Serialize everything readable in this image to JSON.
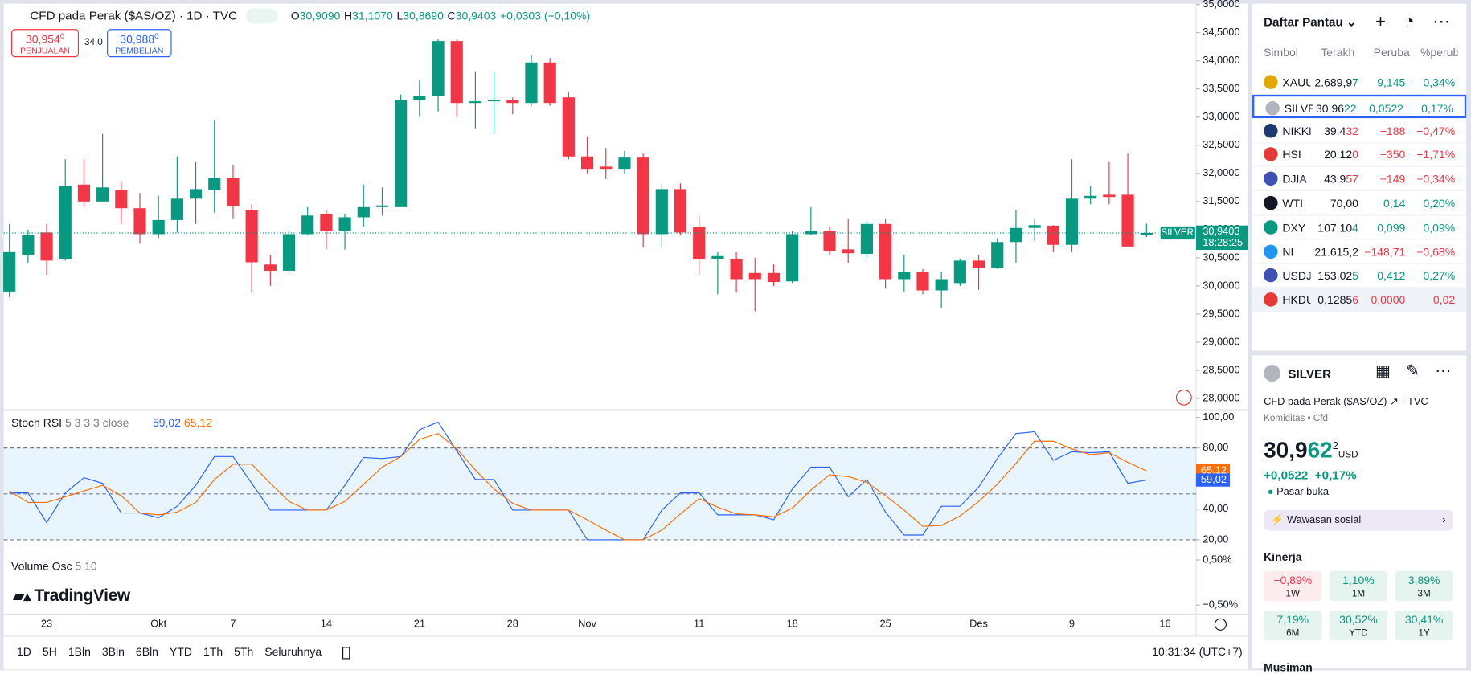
{
  "header": {
    "title": "CFD pada Perak ($AS/OZ) · 1D · TVC",
    "ohlc": [
      {
        "label": "O",
        "value": "30,9090"
      },
      {
        "label": "H",
        "value": "31,1070"
      },
      {
        "label": "L",
        "value": "30,8690"
      },
      {
        "label": "C",
        "value": "30,9403"
      }
    ],
    "change": "+0,0303 (+0,10%)",
    "sell": {
      "price": "30,954",
      "sup": "0",
      "label": "PENJUALAN"
    },
    "spread": "34,0",
    "buy": {
      "price": "30,988",
      "sup": "0",
      "label": "PEMBELIAN"
    }
  },
  "price_chart": {
    "type": "candlestick",
    "up_color": "#089981",
    "down_color": "#f23645",
    "ylim": [
      27.8,
      35.08
    ],
    "yticks": [
      {
        "value": 35,
        "label": "35,0000"
      },
      {
        "value": 34.5,
        "label": "34,5000"
      },
      {
        "value": 34,
        "label": "34,0000"
      },
      {
        "value": 33.5,
        "label": "33,5000"
      },
      {
        "value": 33,
        "label": "33,0000"
      },
      {
        "value": 32.5,
        "label": "32,5000"
      },
      {
        "value": 32,
        "label": "32,0000"
      },
      {
        "value": 31.5,
        "label": "31,5000"
      },
      {
        "value": 31,
        "label": "31,0000"
      },
      {
        "value": 30.5,
        "label": "30,5000"
      },
      {
        "value": 30,
        "label": "30,0000"
      },
      {
        "value": 29.5,
        "label": "29,5000"
      },
      {
        "value": 29,
        "label": "29,0000"
      },
      {
        "value": 28.5,
        "label": "28,5000"
      },
      {
        "value": 28,
        "label": "28,0000"
      }
    ],
    "open": [
      29.9,
      30.55,
      30.95,
      30.47,
      31.8,
      31.5,
      31.7,
      31.38,
      30.92,
      31.17,
      31.55,
      31.7,
      31.92,
      31.35,
      30.38,
      30.27,
      30.92,
      31.28,
      30.97,
      31.22,
      31.4,
      31.4,
      33.3,
      33.37,
      34.35,
      33.25,
      33.28,
      33.3,
      33.25,
      33.97,
      33.35,
      32.3,
      32.12,
      32.08,
      32.28,
      30.92,
      31.72,
      31.05,
      30.47,
      30.47,
      30.23,
      30.23,
      30.08,
      30.92,
      30.97,
      30.65,
      30.57,
      31.1,
      30.12,
      30.25,
      29.92,
      30.05,
      30.45,
      30.32,
      30.78,
      31.03,
      31.07,
      30.73,
      31.55,
      31.62,
      31.62,
      30.909
    ],
    "high": [
      31.1,
      31.0,
      31.1,
      32.25,
      32.25,
      32.7,
      31.85,
      31.65,
      31.6,
      32.3,
      32.2,
      32.95,
      32.15,
      31.45,
      30.55,
      31.0,
      31.4,
      31.35,
      31.28,
      31.8,
      31.75,
      33.4,
      33.65,
      34.38,
      34.38,
      33.8,
      33.8,
      33.35,
      34.1,
      34.05,
      33.45,
      32.65,
      32.45,
      32.4,
      32.35,
      31.82,
      31.82,
      31.25,
      30.6,
      30.6,
      30.5,
      30.38,
      30.97,
      31.4,
      31.05,
      31.2,
      31.15,
      31.2,
      30.55,
      30.3,
      30.25,
      30.48,
      30.55,
      30.85,
      31.35,
      31.2,
      31.08,
      32.25,
      31.78,
      32.2,
      32.35,
      31.107
    ],
    "low": [
      29.8,
      30.4,
      30.2,
      30.45,
      31.4,
      31.5,
      31.1,
      30.75,
      30.85,
      30.95,
      31.1,
      31.3,
      31.2,
      29.9,
      30.0,
      30.2,
      30.9,
      30.65,
      30.65,
      31.05,
      31.25,
      31.4,
      33.0,
      33.1,
      33.0,
      32.8,
      32.7,
      33.05,
      33.2,
      33.2,
      32.25,
      32.0,
      31.9,
      32.0,
      30.68,
      30.7,
      30.9,
      30.2,
      29.85,
      29.88,
      29.55,
      30.0,
      30.05,
      30.9,
      30.55,
      30.4,
      30.5,
      29.95,
      29.9,
      29.85,
      29.6,
      30.0,
      29.93,
      30.3,
      30.4,
      30.8,
      30.6,
      30.6,
      31.45,
      31.45,
      30.7,
      30.869
    ],
    "close": [
      30.6,
      30.9,
      30.45,
      31.78,
      31.5,
      31.75,
      31.38,
      30.92,
      31.17,
      31.55,
      31.72,
      31.92,
      31.42,
      30.42,
      30.27,
      30.92,
      31.25,
      30.98,
      31.22,
      31.4,
      31.43,
      33.3,
      33.37,
      34.35,
      33.25,
      33.28,
      33.3,
      33.25,
      33.97,
      33.25,
      32.3,
      32.08,
      32.08,
      32.28,
      30.92,
      31.72,
      30.95,
      30.47,
      30.53,
      30.12,
      30.12,
      30.07,
      30.92,
      30.97,
      30.62,
      30.58,
      31.1,
      30.12,
      30.25,
      29.92,
      30.12,
      30.45,
      30.32,
      30.78,
      31.03,
      31.08,
      30.73,
      31.55,
      31.6,
      31.58,
      30.7,
      30.9403
    ],
    "last_price": {
      "value": 30.9403,
      "label": "30,9403",
      "countdown": "18:28:25",
      "name": "SILVER"
    }
  },
  "stoch_rsi": {
    "type": "line",
    "title": "Stoch RSI",
    "params": "5 3 3 3 close",
    "ylim": [
      11.25,
      105
    ],
    "yticks": [
      {
        "value": 100,
        "label": "100,00"
      },
      {
        "value": 80,
        "label": "80,00"
      },
      {
        "value": 40,
        "label": "40,00"
      },
      {
        "value": 20,
        "label": "20,00"
      }
    ],
    "band": [
      20,
      80
    ],
    "band_lines": [
      80,
      50,
      20
    ],
    "series": [
      {
        "name": "K",
        "label": "59,02",
        "color": "#2962ff",
        "values": [
          50.6,
          50.6,
          31.3,
          50.6,
          60.6,
          56.9,
          37.5,
          37.5,
          34.4,
          41.9,
          55.6,
          74.4,
          74.4,
          56.9,
          39.4,
          39.4,
          39.4,
          39.4,
          55.6,
          73.8,
          73.1,
          74.4,
          91.9,
          96.9,
          78.1,
          59.4,
          59.4,
          39.4,
          39.4,
          39.4,
          39.4,
          20,
          20,
          20,
          20,
          39.4,
          50.6,
          50.6,
          36.3,
          36.3,
          36.3,
          33.1,
          53.1,
          67.5,
          67.5,
          48.1,
          59.4,
          38.1,
          23.1,
          23.1,
          41.9,
          41.9,
          54.4,
          73.1,
          89.4,
          90.6,
          71.9,
          77.5,
          76.9,
          77.5,
          56.9,
          59.02
        ]
      },
      {
        "name": "D",
        "label": "65,12",
        "color": "#ff6d00",
        "values": [
          51.9,
          44.4,
          44.4,
          48.1,
          51.9,
          55.6,
          48.8,
          37.5,
          36.3,
          38.1,
          44.4,
          59.4,
          69.4,
          69.4,
          56.9,
          45,
          39.4,
          39.4,
          45,
          56.3,
          67.5,
          74.4,
          85.6,
          89.4,
          79.4,
          65.6,
          53.1,
          43.8,
          39.4,
          39.4,
          39.4,
          33.1,
          26.3,
          20,
          20,
          26.3,
          36.9,
          46.9,
          41.3,
          36.9,
          36.3,
          35,
          40.6,
          52.5,
          62.5,
          61.3,
          57.5,
          48.8,
          39.4,
          28.8,
          29.4,
          35.6,
          45,
          56.3,
          70,
          84.4,
          84.4,
          79.4,
          75.6,
          76.9,
          70.6,
          65.12
        ]
      }
    ]
  },
  "volume_osc": {
    "title": "Volume Osc",
    "params": "5 10",
    "ylim": [
      -0.7,
      0.65
    ],
    "yticks": [
      {
        "value": 0.5,
        "label": "0,50%"
      },
      {
        "value": -0.5,
        "label": "−0,50%"
      }
    ]
  },
  "logo": "TradingView",
  "time_axis": [
    {
      "label": "23",
      "index": 2
    },
    {
      "label": "Okt",
      "index": 8
    },
    {
      "label": "7",
      "index": 12
    },
    {
      "label": "14",
      "index": 17
    },
    {
      "label": "21",
      "index": 22
    },
    {
      "label": "28",
      "index": 27
    },
    {
      "label": "Nov",
      "index": 31
    },
    {
      "label": "11",
      "index": 37
    },
    {
      "label": "18",
      "index": 42
    },
    {
      "label": "25",
      "index": 47
    },
    {
      "label": "Des",
      "index": 52
    },
    {
      "label": "9",
      "index": 57
    },
    {
      "label": "16",
      "index": 62
    }
  ],
  "toolbar": {
    "ranges": [
      "1D",
      "5H",
      "1Bln",
      "3Bln",
      "6Bln",
      "YTD",
      "1Th",
      "5Th",
      "Seluruhnya"
    ],
    "clock": "10:31:34 (UTC+7)"
  },
  "watchlist": {
    "title": "Daftar Pantau",
    "columns": [
      "Simbol",
      "Terakh",
      "Peruba",
      "%perubah"
    ],
    "rows": [
      {
        "symbol": "XAUU",
        "last": "2.689,9",
        "tail": "7",
        "change": "9,145",
        "pct": "0,34%",
        "dir": "up",
        "icon": "#e0a800"
      },
      {
        "symbol": "SILVEI",
        "last": "30,96",
        "tail": "22",
        "change": "0,0522",
        "pct": "0,17%",
        "dir": "up",
        "icon": "#b2b5be"
      },
      {
        "symbol": "NIKKE",
        "last": "39.4",
        "tail": "32",
        "change": "−188",
        "pct": "−0,47%",
        "dir": "down",
        "icon": "#1e3a6e"
      },
      {
        "symbol": "HSI",
        "last": "20.12",
        "tail": "0",
        "change": "−350",
        "pct": "−1,71%",
        "dir": "down",
        "icon": "#e53935"
      },
      {
        "symbol": "DJIA",
        "last": "43.9",
        "tail": "57",
        "change": "−149",
        "pct": "−0,34%",
        "dir": "down",
        "icon": "#3f51b5"
      },
      {
        "symbol": "WTI",
        "last": "70,00",
        "tail": "",
        "change": "0,14",
        "pct": "0,20%",
        "dir": "up",
        "icon": "#131722"
      },
      {
        "symbol": "DXY",
        "last": "107,10",
        "tail": "4",
        "change": "0,099",
        "pct": "0,09%",
        "dir": "up",
        "icon": "#089981"
      },
      {
        "symbol": "NI",
        "last": "21.615,2",
        "tail": "",
        "change": "−148,71",
        "pct": "−0,68%",
        "dir": "down",
        "icon": "#2196f3"
      },
      {
        "symbol": "USDJI",
        "last": "153,02",
        "tail": "5",
        "change": "0,412",
        "pct": "0,27%",
        "dir": "up",
        "icon": "#3f51b5"
      },
      {
        "symbol": "HKDU",
        "last": "0,1285",
        "tail": "6",
        "change": "−0,0000",
        "pct": "−0,02",
        "dir": "down",
        "icon": "#e53935"
      }
    ]
  },
  "details": {
    "symbol": "SILVER",
    "description": "CFD pada Perak ($AS/OZ)",
    "exchange": "TVC",
    "category": "Komiditas",
    "subcategory": "Cfd",
    "price": "30,9",
    "price_tail": "62",
    "price_sup": "2",
    "currency": "USD",
    "change": "+0,0522",
    "pct": "+0,17%",
    "status": "Pasar buka",
    "social": "Wawasan sosial",
    "performance_title": "Kinerja",
    "performance": [
      {
        "value": "−0,89%",
        "period": "1W",
        "dir": "down"
      },
      {
        "value": "1,10%",
        "period": "1M",
        "dir": "up"
      },
      {
        "value": "3,89%",
        "period": "3M",
        "dir": "up"
      },
      {
        "value": "7,19%",
        "period": "6M",
        "dir": "up"
      },
      {
        "value": "30,52%",
        "period": "YTD",
        "dir": "up"
      },
      {
        "value": "30,41%",
        "period": "1Y",
        "dir": "up"
      }
    ],
    "seasonal": "Musiman"
  }
}
